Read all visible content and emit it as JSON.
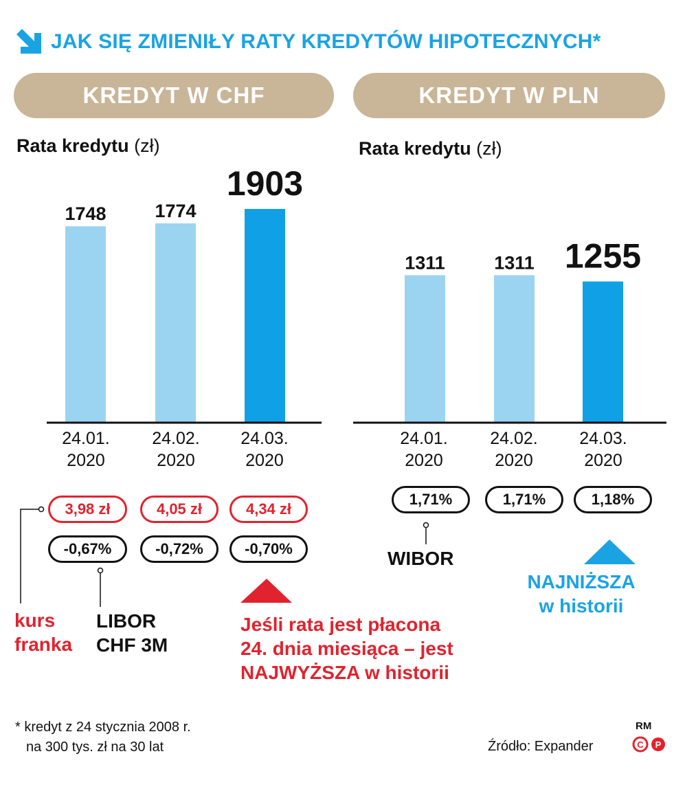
{
  "title": "JAK SIĘ ZMIENIŁY RATY KREDYTÓW HIPOTECZNYCH*",
  "headers": {
    "chf": "KREDYT W CHF",
    "pln": "KREDYT W PLN"
  },
  "rate_label": {
    "main": "Rata kredytu",
    "unit": "(zł)"
  },
  "colors": {
    "bar_light": "#9bd4f1",
    "bar_dark": "#0fa0e6",
    "accent_red": "#e0232e",
    "accent_blue": "#1aa3e3",
    "header_bg": "#c9b597"
  },
  "chart_data": [
    {
      "type": "bar",
      "title": "KREDYT W CHF",
      "ylabel": "Rata kredytu (zł)",
      "categories": [
        "24.01.\n2020",
        "24.02.\n2020",
        "24.03.\n2020"
      ],
      "values": [
        1748,
        1774,
        1903
      ],
      "value_labels": [
        "1748",
        "1774",
        "1903"
      ],
      "highlight_index": 2,
      "ylim": [
        0,
        1903
      ]
    },
    {
      "type": "bar",
      "title": "KREDYT W PLN",
      "ylabel": "Rata kredytu (zł)",
      "categories": [
        "24.01.\n2020",
        "24.02.\n2020",
        "24.03.\n2020"
      ],
      "values": [
        1311,
        1311,
        1255
      ],
      "value_labels": [
        "1311",
        "1311",
        "1255"
      ],
      "highlight_index": 2,
      "ylim": [
        0,
        1903
      ]
    }
  ],
  "chf_dates": [
    {
      "line1": "24.01.",
      "line2": "2020"
    },
    {
      "line1": "24.02.",
      "line2": "2020"
    },
    {
      "line1": "24.03.",
      "line2": "2020"
    }
  ],
  "pln_dates": [
    {
      "line1": "24.01.",
      "line2": "2020"
    },
    {
      "line1": "24.02.",
      "line2": "2020"
    },
    {
      "line1": "24.03.",
      "line2": "2020"
    }
  ],
  "chf_kurs": [
    "3,98 zł",
    "4,05 zł",
    "4,34 zł"
  ],
  "chf_libor": [
    "-0,67%",
    "-0,72%",
    "-0,70%"
  ],
  "pln_wibor": [
    "1,71%",
    "1,71%",
    "1,18%"
  ],
  "labels": {
    "kurs_line1": "kurs",
    "kurs_line2": "franka",
    "libor_line1": "LIBOR",
    "libor_line2": "CHF 3M",
    "wibor": "WIBOR",
    "chf_note_line1": "Jeśli rata jest płacona",
    "chf_note_line2": "24. dnia miesiąca – jest",
    "chf_note_line3": "NAJWYŻSZA w historii",
    "pln_note_line1": "NAJNIŻSZA",
    "pln_note_line2": "w historii"
  },
  "footnote": {
    "line1": "* kredyt z 24 stycznia 2008 r.",
    "line2": "na 300 tys. zł na 30 lat"
  },
  "source": "Źródło: Expander",
  "credit": "RM"
}
